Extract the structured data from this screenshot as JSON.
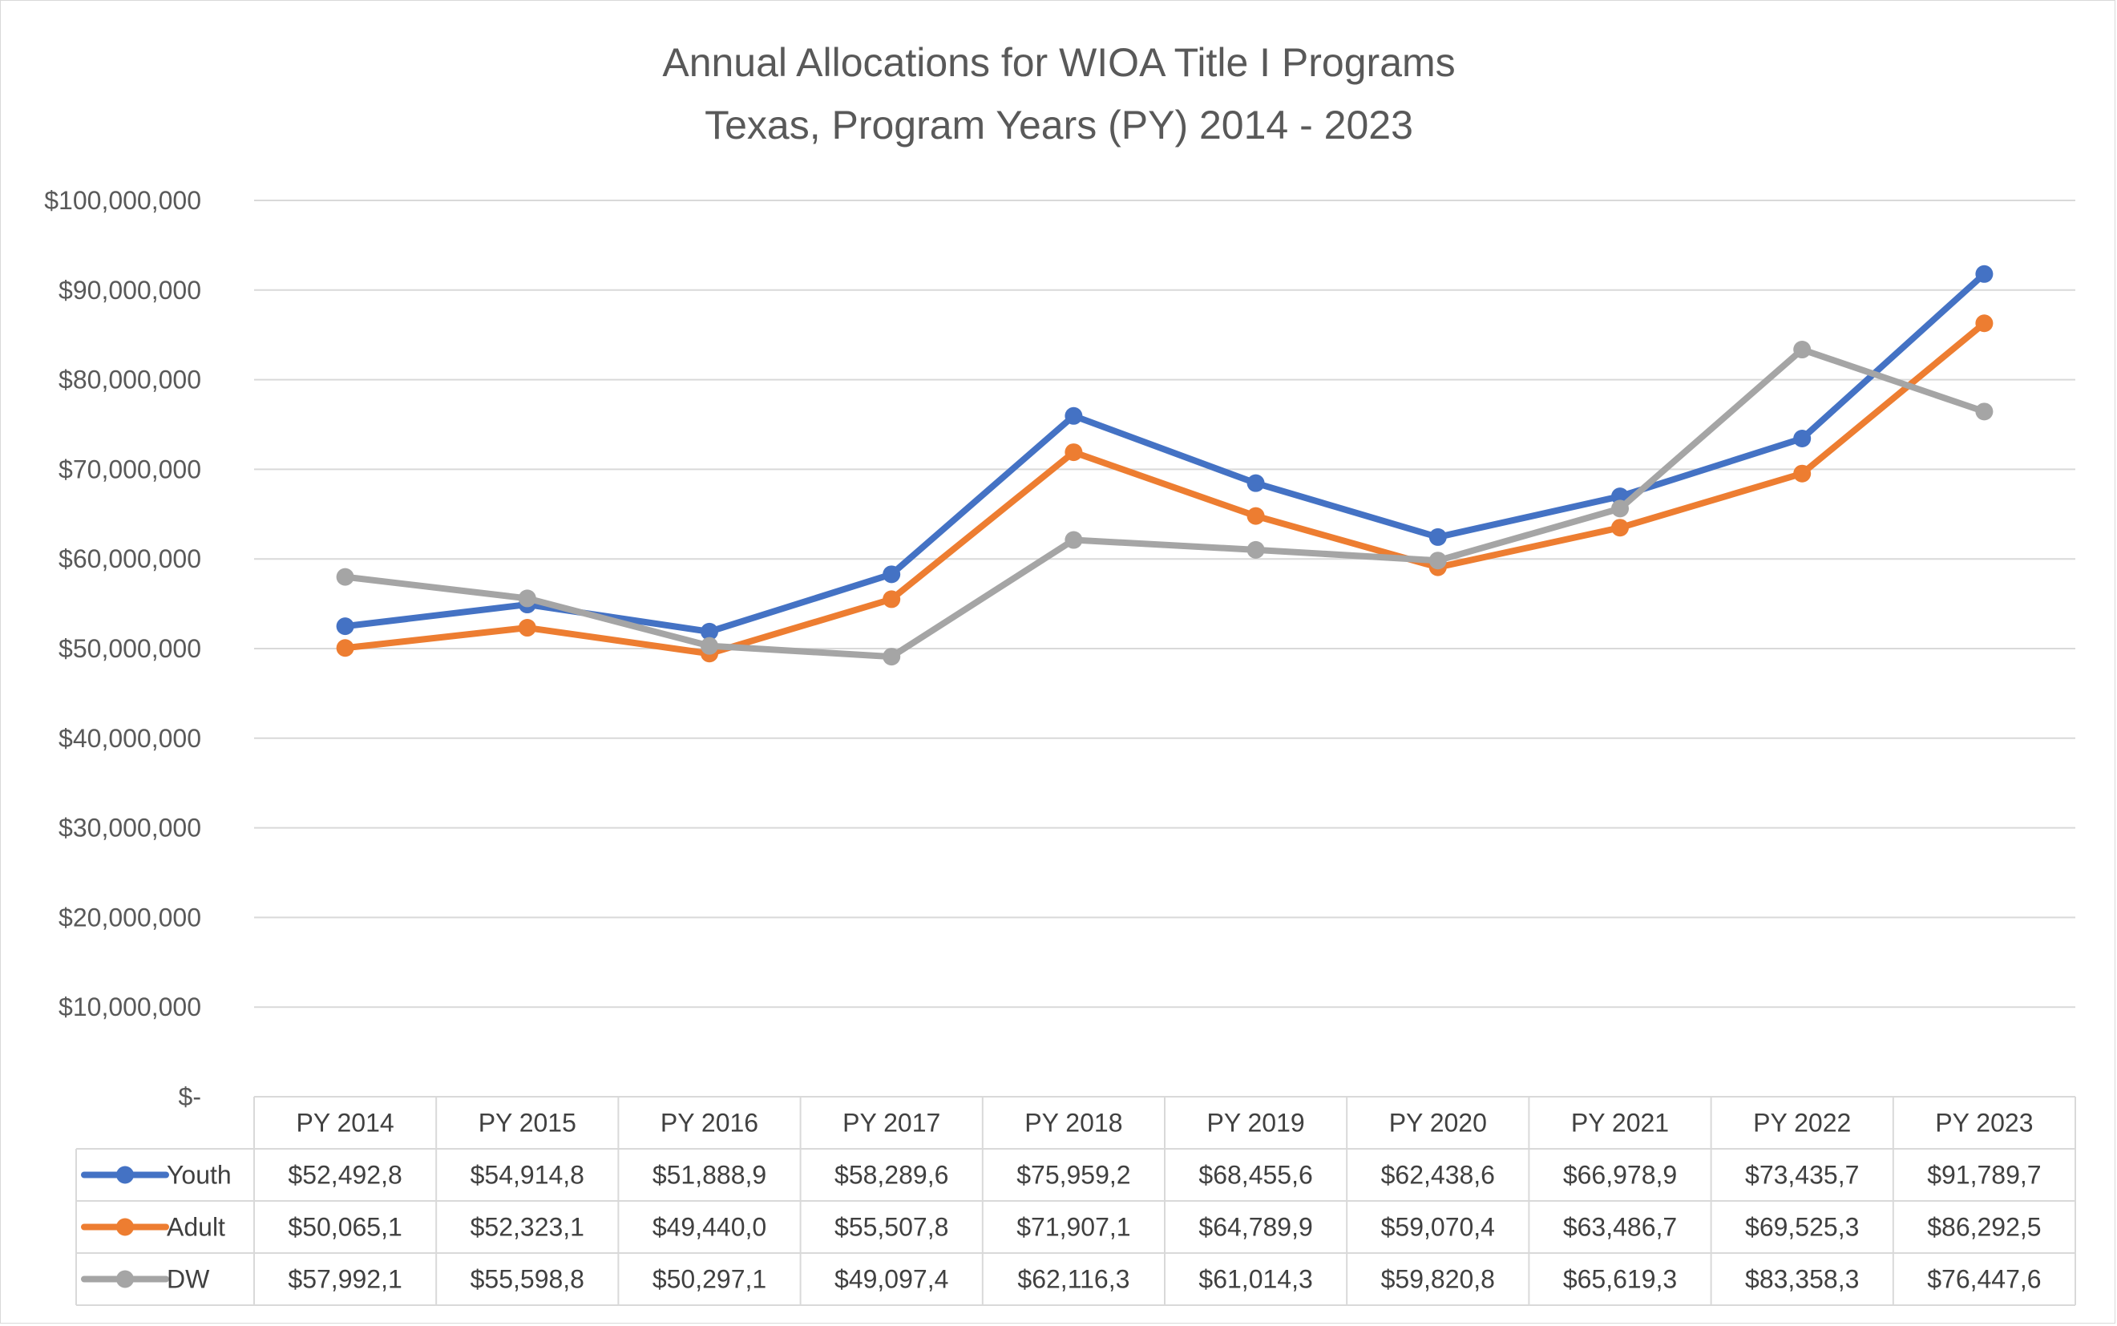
{
  "chart_data": {
    "type": "line",
    "title": "Annual Allocations for WIOA Title I Programs",
    "subtitle": "Texas, Program Years (PY) 2014 - 2023",
    "categories": [
      "PY 2014",
      "PY 2015",
      "PY 2016",
      "PY 2017",
      "PY 2018",
      "PY 2019",
      "PY 2020",
      "PY 2021",
      "PY 2022",
      "PY 2023"
    ],
    "y_ticks": [
      "$-",
      "$10,000,000",
      "$20,000,000",
      "$30,000,000",
      "$40,000,000",
      "$50,000,000",
      "$60,000,000",
      "$70,000,000",
      "$80,000,000",
      "$90,000,000",
      "$100,000,000"
    ],
    "ylim": [
      0,
      100000000
    ],
    "grid": true,
    "legend": "data-table",
    "series": [
      {
        "name": "Youth",
        "color": "#4472c4",
        "values": [
          52492800,
          54914800,
          51888900,
          58289600,
          75959200,
          68455600,
          62438600,
          66978900,
          73435700,
          91789700
        ],
        "labels": [
          "$52,492,8",
          "$54,914,8",
          "$51,888,9",
          "$58,289,6",
          "$75,959,2",
          "$68,455,6",
          "$62,438,6",
          "$66,978,9",
          "$73,435,7",
          "$91,789,7"
        ]
      },
      {
        "name": "Adult",
        "color": "#ed7d31",
        "values": [
          50065100,
          52323100,
          49440000,
          55507800,
          71907100,
          64789900,
          59070400,
          63486700,
          69525300,
          86292500
        ],
        "labels": [
          "$50,065,1",
          "$52,323,1",
          "$49,440,0",
          "$55,507,8",
          "$71,907,1",
          "$64,789,9",
          "$59,070,4",
          "$63,486,7",
          "$69,525,3",
          "$86,292,5"
        ]
      },
      {
        "name": "DW",
        "color": "#a5a5a5",
        "values": [
          57992100,
          55598800,
          50297100,
          49097400,
          62116300,
          61014300,
          59820800,
          65619300,
          83358300,
          76447600
        ],
        "labels": [
          "$57,992,1",
          "$55,598,8",
          "$50,297,1",
          "$49,097,4",
          "$62,116,3",
          "$61,014,3",
          "$59,820,8",
          "$65,619,3",
          "$83,358,3",
          "$76,447,6"
        ]
      }
    ]
  }
}
